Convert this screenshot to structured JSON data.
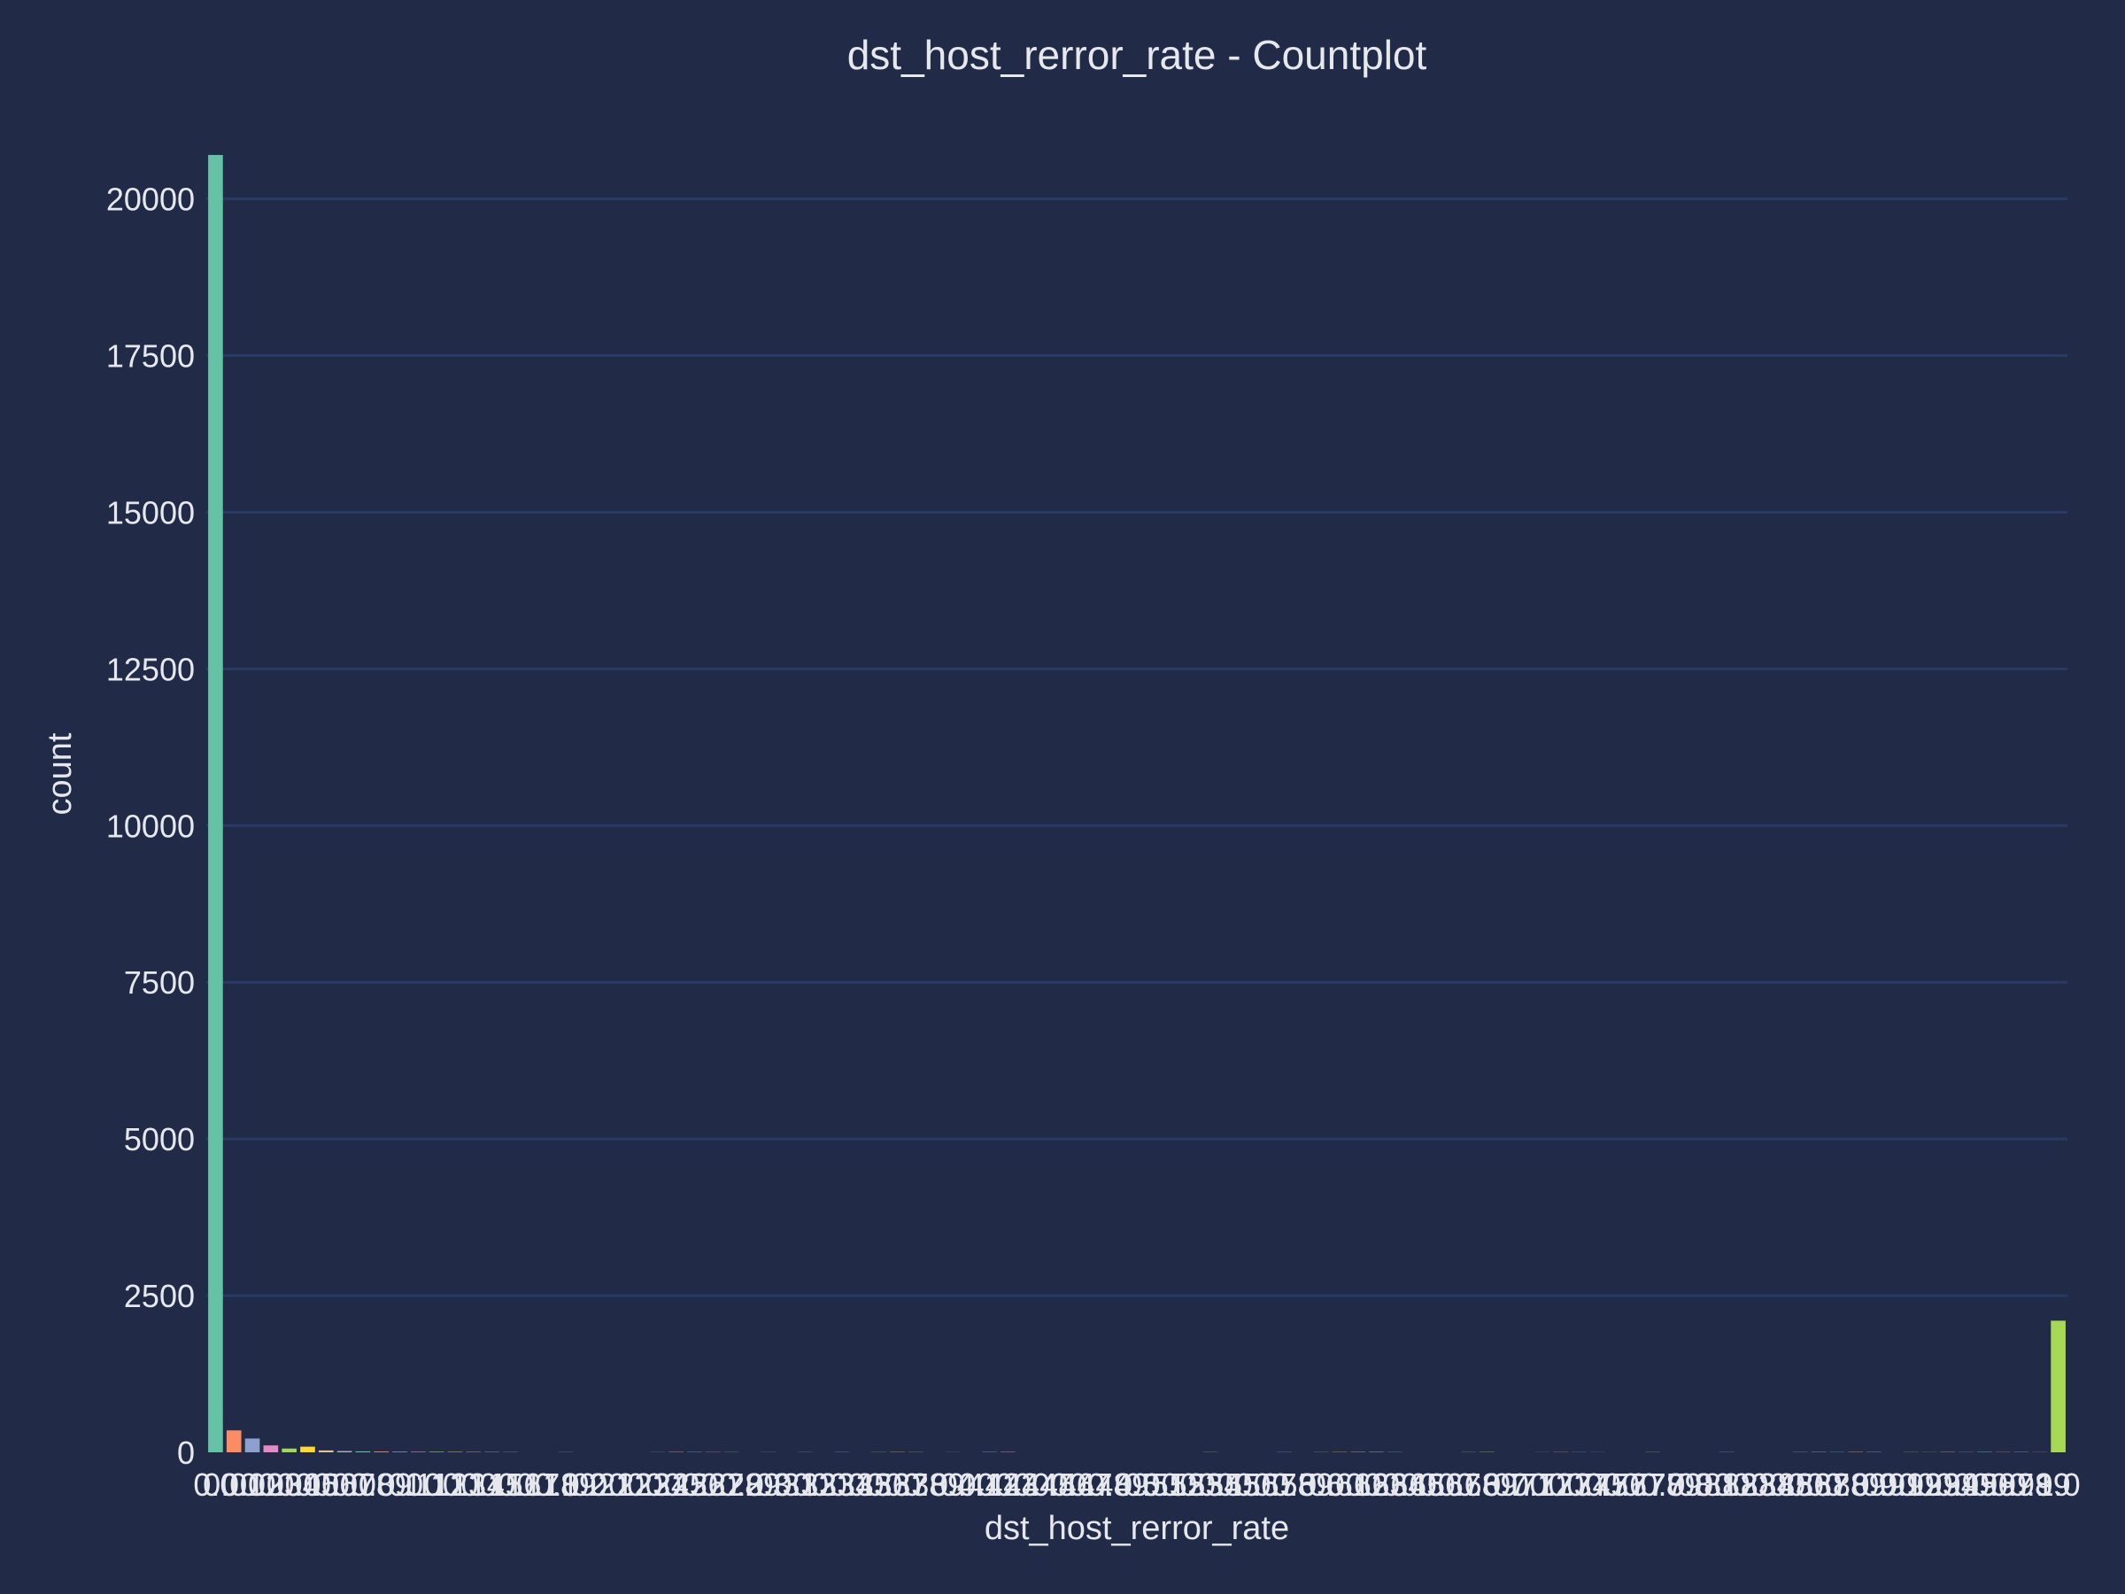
{
  "chart_data": {
    "type": "bar",
    "title": "dst_host_rerror_rate - Countplot",
    "xlabel": "dst_host_rerror_rate",
    "ylabel": "count",
    "ylim": [
      0,
      20700
    ],
    "yticks": [
      0,
      2500,
      5000,
      7500,
      10000,
      12500,
      15000,
      17500,
      20000
    ],
    "grid": "horizontal",
    "legend": "none",
    "categories": [
      "0.0",
      "0.01",
      "0.02",
      "0.03",
      "0.04",
      "0.05",
      "0.06",
      "0.07",
      "0.08",
      "0.09",
      "0.1",
      "0.11",
      "0.12",
      "0.13",
      "0.14",
      "0.15",
      "0.16",
      "0.17",
      "0.18",
      "0.19",
      "0.2",
      "0.21",
      "0.22",
      "0.23",
      "0.24",
      "0.25",
      "0.26",
      "0.27",
      "0.28",
      "0.29",
      "0.3",
      "0.31",
      "0.32",
      "0.33",
      "0.34",
      "0.35",
      "0.36",
      "0.37",
      "0.38",
      "0.39",
      "0.4",
      "0.41",
      "0.42",
      "0.43",
      "0.44",
      "0.45",
      "0.46",
      "0.47",
      "0.48",
      "0.49",
      "0.5",
      "0.51",
      "0.52",
      "0.53",
      "0.54",
      "0.55",
      "0.56",
      "0.57",
      "0.58",
      "0.59",
      "0.6",
      "0.61",
      "0.62",
      "0.63",
      "0.64",
      "0.65",
      "0.66",
      "0.67",
      "0.68",
      "0.69",
      "0.7",
      "0.71",
      "0.72",
      "0.73",
      "0.74",
      "0.75",
      "0.76",
      "0.77",
      "0.78",
      "0.79",
      "0.8",
      "0.81",
      "0.82",
      "0.83",
      "0.84",
      "0.85",
      "0.86",
      "0.87",
      "0.88",
      "0.89",
      "0.9",
      "0.91",
      "0.92",
      "0.93",
      "0.94",
      "0.95",
      "0.96",
      "0.97",
      "0.98",
      "0.99",
      "1.0"
    ],
    "values": [
      20700,
      350,
      220,
      110,
      60,
      90,
      30,
      20,
      15,
      12,
      10,
      8,
      8,
      6,
      5,
      5,
      4,
      0,
      0,
      3,
      0,
      0,
      0,
      0,
      3,
      6,
      5,
      4,
      3,
      0,
      2,
      0,
      3,
      0,
      4,
      0,
      3,
      4,
      3,
      0,
      2,
      0,
      5,
      6,
      0,
      0,
      0,
      0,
      0,
      0,
      0,
      0,
      0,
      0,
      3,
      0,
      0,
      0,
      4,
      0,
      3,
      4,
      5,
      6,
      4,
      0,
      0,
      0,
      3,
      4,
      0,
      0,
      2,
      4,
      3,
      2,
      0,
      0,
      3,
      0,
      0,
      0,
      4,
      0,
      0,
      0,
      3,
      5,
      4,
      6,
      5,
      0,
      3,
      2,
      4,
      3,
      6,
      4,
      5,
      3,
      2100
    ],
    "palette": [
      "#66c2a5",
      "#fc8d62",
      "#8da0cb",
      "#e78ac3",
      "#a6d854",
      "#ffd92f",
      "#e5c494",
      "#b3b3b3"
    ],
    "colors": {
      "background": "#212a47",
      "gridline": "#2a3a66",
      "text": "#e6e8ee"
    }
  }
}
